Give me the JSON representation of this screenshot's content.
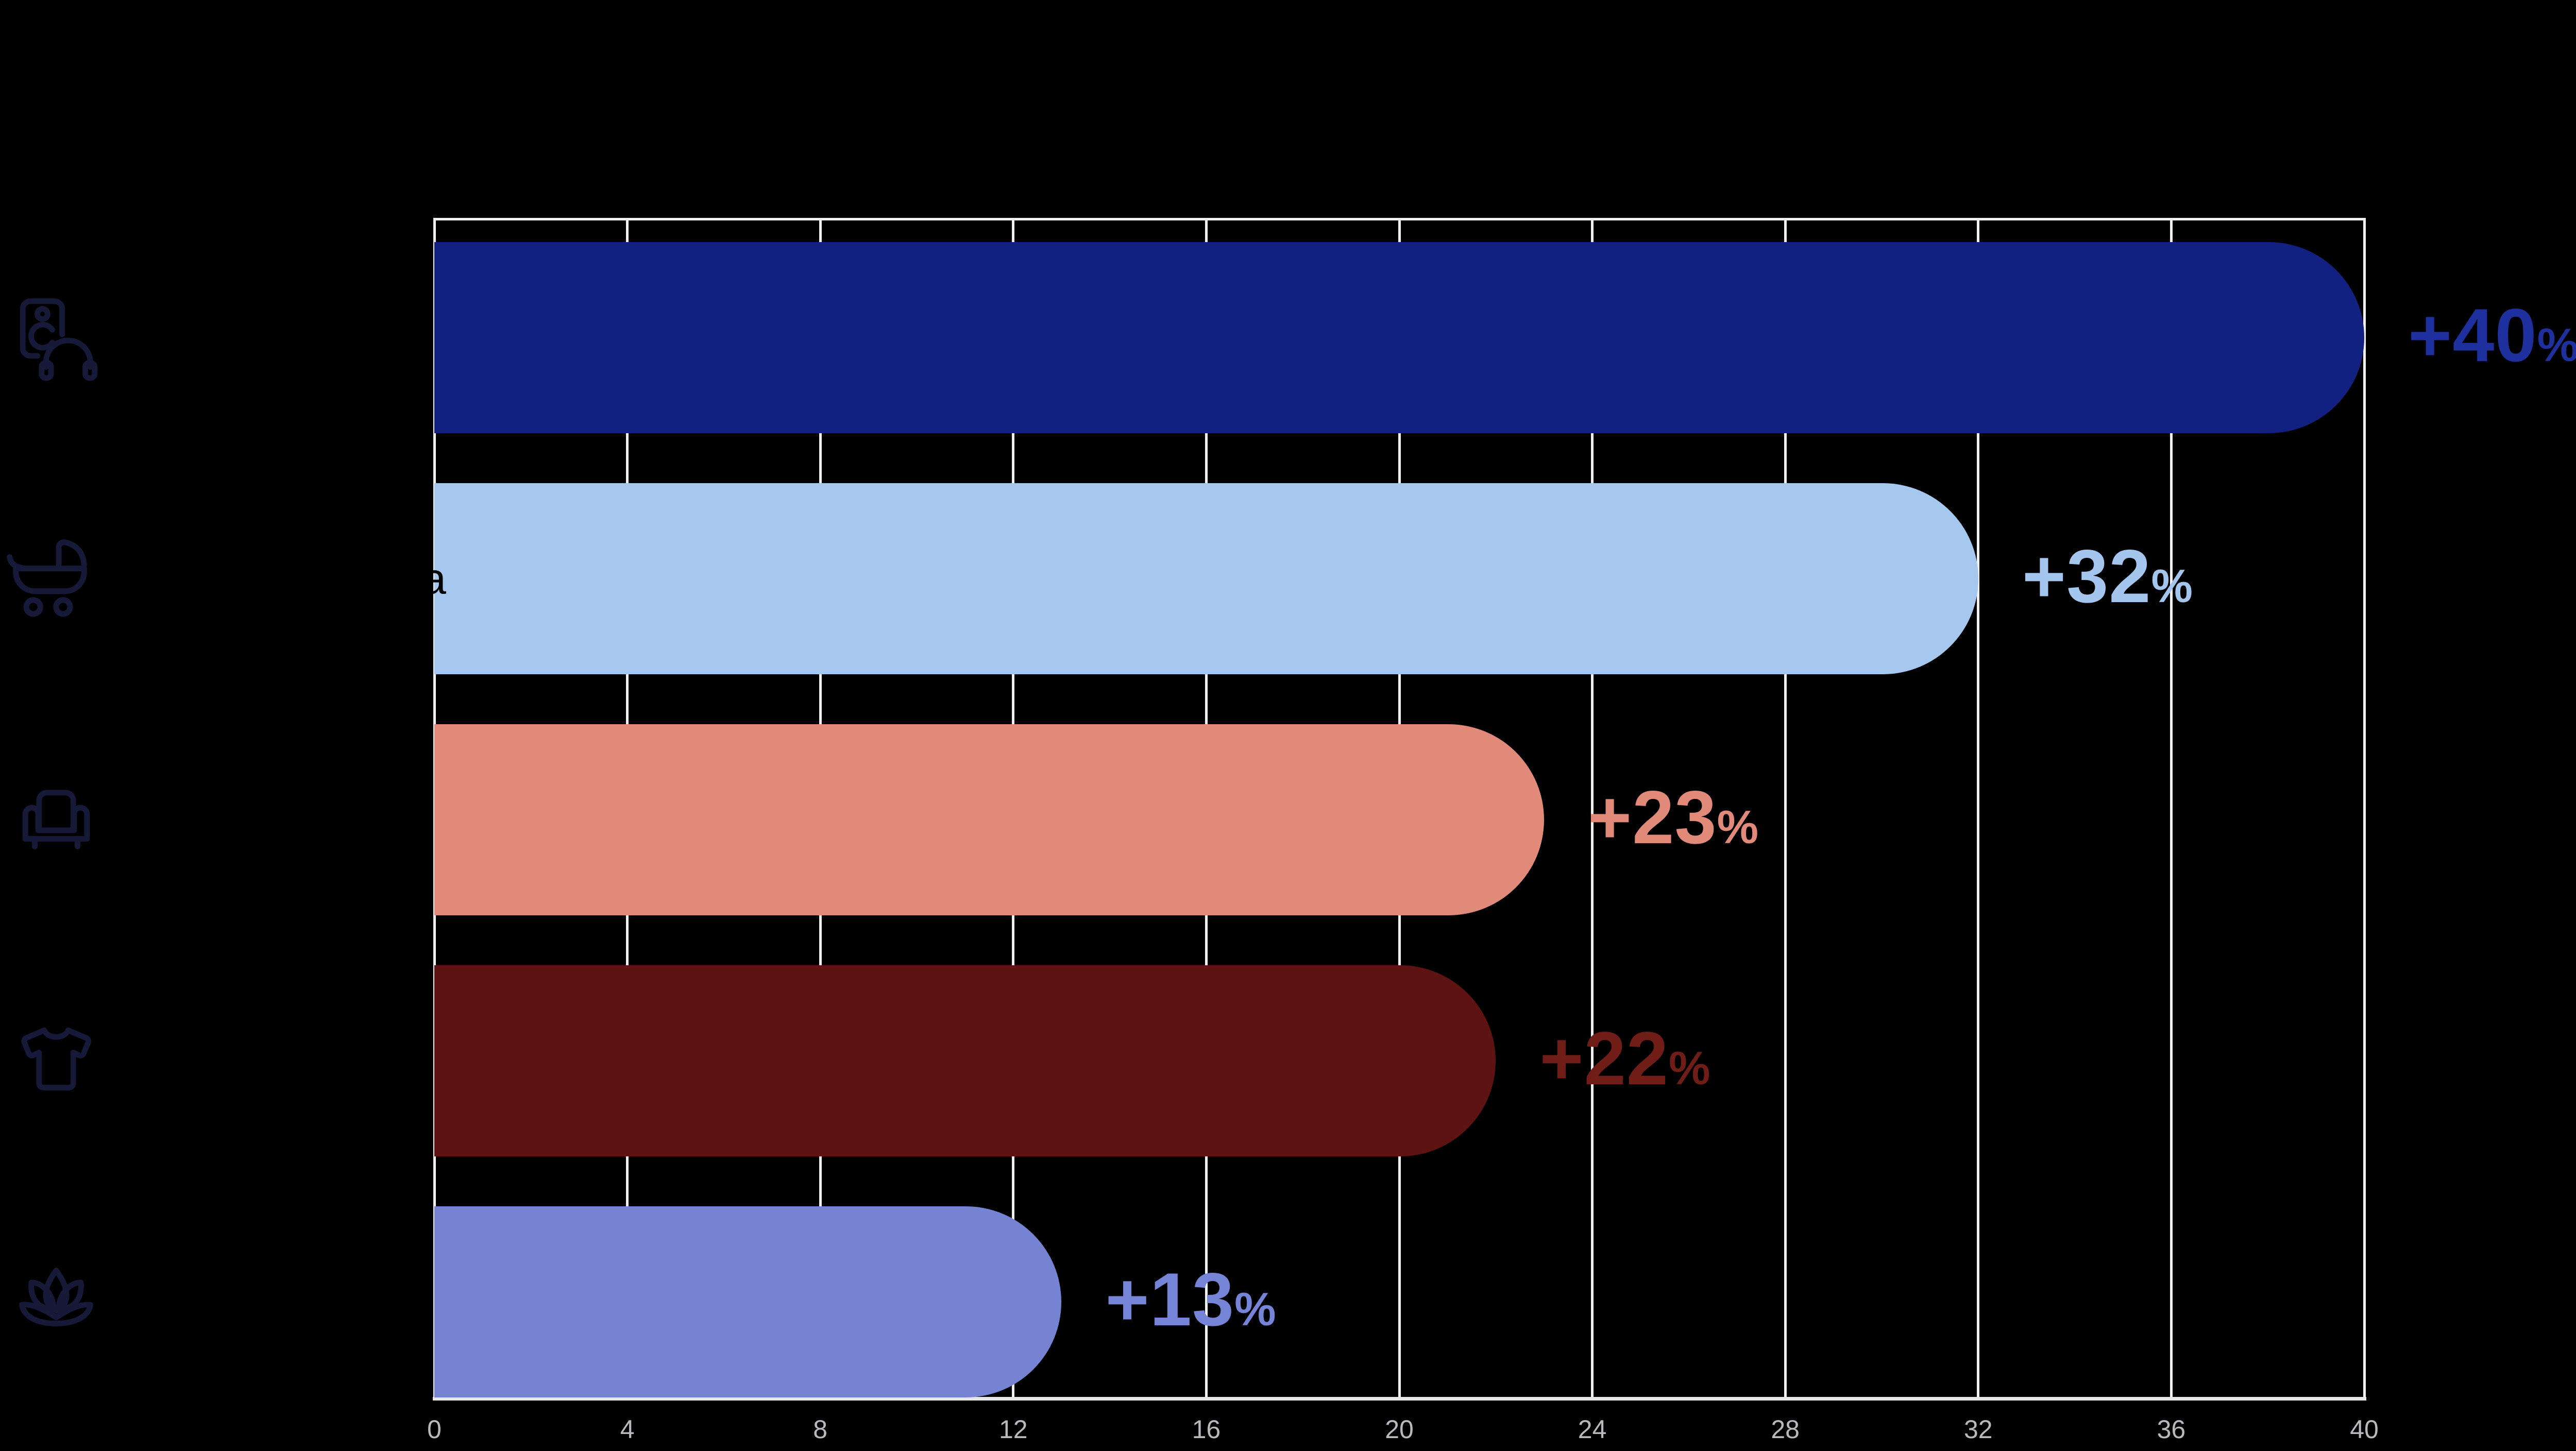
{
  "chart_data": {
    "type": "bar",
    "orientation": "horizontal",
    "title": "",
    "xlabel": "",
    "ylabel": "",
    "xlim": [
      0,
      40
    ],
    "x_ticks": [
      0,
      4,
      8,
      12,
      16,
      20,
      24,
      28,
      32,
      36,
      40
    ],
    "grid": true,
    "legend": "none",
    "background_color": "#000000",
    "gridline_color": "#f0f0f0",
    "axis_line_color": "#e6e6e8",
    "tick_label_color": "#b9b9bd",
    "icon_color": "#161a38",
    "categories": [
      "electronics-audio",
      "baby-products",
      "furniture",
      "apparel",
      "wellness"
    ],
    "values": [
      40,
      32,
      23,
      22,
      13
    ],
    "rows": [
      {
        "icon": "speaker-headphones-icon",
        "value": 40,
        "value_label": "+40%",
        "bar_color": "#122181",
        "label_color": "#1e2f9e"
      },
      {
        "icon": "stroller-icon",
        "value": 32,
        "value_label": "+32%",
        "bar_color": "#a6c8ef",
        "label_color": "#a4c6ee"
      },
      {
        "icon": "armchair-icon",
        "value": 23,
        "value_label": "+23%",
        "bar_color": "#e28a7a",
        "label_color": "#e28a7a"
      },
      {
        "icon": "tshirt-icon",
        "value": 22,
        "value_label": "+22%",
        "bar_color": "#5c1311",
        "label_color": "#701d17"
      },
      {
        "icon": "lotus-icon",
        "value": 13,
        "value_label": "+13%",
        "bar_color": "#7583d2",
        "label_color": "#7684d8"
      }
    ],
    "visible_label_fragment": {
      "row_index": 1,
      "text": "a",
      "color": "#000000"
    }
  }
}
